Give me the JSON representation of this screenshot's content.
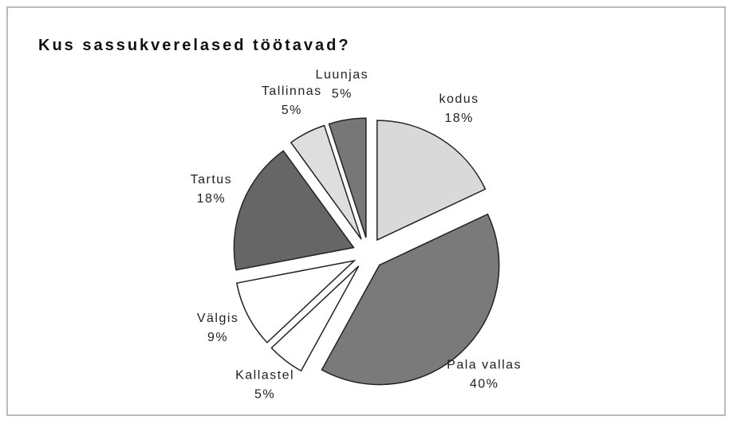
{
  "chart_data": {
    "type": "pie",
    "title": "Kus sassukverelased töötavad?",
    "categories": [
      "kodus",
      "Pala vallas",
      "Kallastel",
      "Välgis",
      "Tartus",
      "Tallinnas",
      "Luunjas"
    ],
    "values": [
      18,
      40,
      5,
      9,
      18,
      5,
      5
    ],
    "value_labels": [
      "18%",
      "40%",
      "5%",
      "9%",
      "18%",
      "5%",
      "5%"
    ],
    "colors": [
      "#d9d9d9",
      "#7a7a7a",
      "#ffffff",
      "#ffffff",
      "#666666",
      "#dedede",
      "#777777"
    ]
  }
}
